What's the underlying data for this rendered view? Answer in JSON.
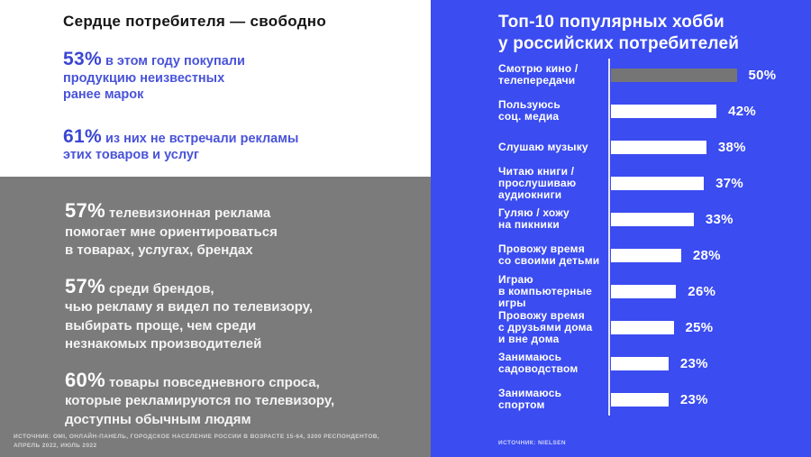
{
  "left": {
    "white_section": {
      "title": "Сердце потребителя — свободно",
      "stats": [
        {
          "number": "53%",
          "text": "в этом году покупали\nпродукцию неизвестных\nранее марок"
        },
        {
          "number": "61%",
          "text": "из них не встречали рекламы\nэтих товаров и услуг"
        }
      ]
    },
    "gray_section": {
      "stats": [
        {
          "number": "57%",
          "text": "телевизионная реклама\nпомогает мне ориентироваться\nв товарах, услугах, брендах"
        },
        {
          "number": "57%",
          "text": "среди брендов,\nчью рекламу я видел по телевизору,\nвыбирать проще, чем среди\nнезнакомых производителей"
        },
        {
          "number": "60%",
          "text": "товары повседневного спроса,\nкоторые рекламируются по телевизору,\nдоступны обычным людям"
        }
      ],
      "source": "ИСТОЧНИК: OMI, ОНЛАЙН-ПАНЕЛЬ, ГОРОДСКОЕ НАСЕЛЕНИЕ РОССИИ В ВОЗРАСТЕ 15-64, 3200 РЕСПОНДЕНТОВ,\nАПРЕЛЬ 2022, ИЮЛЬ 2022"
    }
  },
  "right": {
    "title": "Топ-10 популярных хобби\nу российских потребителей",
    "source": "ИСТОЧНИК: NIELSEN"
  },
  "colors": {
    "panel_blue": "#3b4cf0",
    "panel_gray": "#7b7b7b",
    "accent_blue_text": "#3b46d4",
    "bar_white": "#ffffff",
    "bar_highlight_gray": "#757575"
  },
  "chart_data": {
    "type": "bar",
    "orientation": "horizontal",
    "title": "Топ-10 популярных хобби у российских потребителей",
    "categories": [
      "Смотрю кино /\nтелепередачи",
      "Пользуюсь\nсоц. медиа",
      "Слушаю музыку",
      "Читаю книги /\nпрослушиваю\nаудиокниги",
      "Гуляю / хожу\nна пикники",
      "Провожу время\nсо своими детьми",
      "Играю\nв компьютерные\nигры",
      "Провожу время\nс друзьями дома\nи вне дома",
      "Занимаюсь\nсадоводством",
      "Занимаюсь\nспортом"
    ],
    "values": [
      50,
      42,
      38,
      37,
      33,
      28,
      26,
      25,
      23,
      23
    ],
    "value_suffix": "%",
    "xlim": [
      0,
      50
    ],
    "highlight_index": 0,
    "legend": false,
    "grid": false
  }
}
